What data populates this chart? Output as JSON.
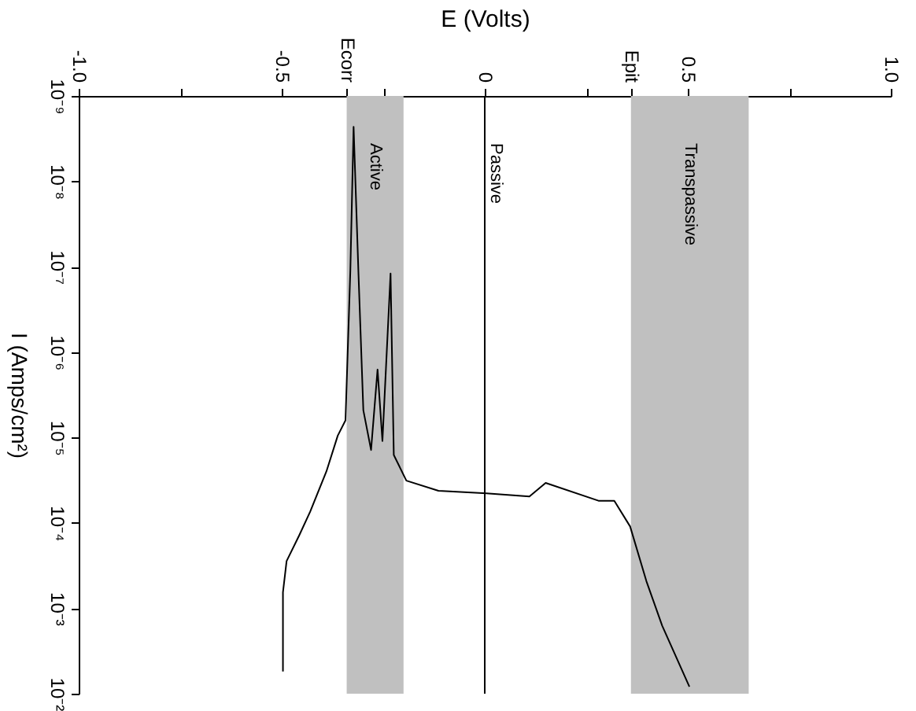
{
  "chart_data": {
    "type": "line",
    "xlabel": "E (Volts)",
    "ylabel": "I (Amps/cm²)",
    "x": [
      -0.497,
      -0.497,
      -0.488,
      -0.457,
      -0.43,
      -0.39,
      -0.362,
      -0.343,
      -0.331,
      -0.323,
      -0.311,
      -0.299,
      -0.28,
      -0.264,
      -0.252,
      -0.232,
      -0.224,
      -0.193,
      -0.114,
      0.004,
      0.11,
      0.15,
      0.28,
      0.319,
      0.358,
      0.398,
      0.437,
      0.504
    ],
    "series": [
      {
        "color": "#000000",
        "values": [
          0.0055,
          0.00065,
          0.00028,
          0.00014,
          7.4e-05,
          2.5e-05,
          9.5e-06,
          6.3e-06,
          1.1e-07,
          2.3e-09,
          1.2e-07,
          4.8e-06,
          1.4e-05,
          1.6e-06,
          1.1e-05,
          1.2e-07,
          1.6e-05,
          3.2e-05,
          4.2e-05,
          4.5e-05,
          4.9e-05,
          3.4e-05,
          5.5e-05,
          5.5e-05,
          0.00011,
          0.00048,
          0.0016,
          0.0083
        ]
      }
    ],
    "xlim": [
      -1.0,
      1.0
    ],
    "xticks": [
      {
        "value": -1.0,
        "label": "-1.0"
      },
      {
        "value": -0.75,
        "label": null
      },
      {
        "value": -0.5,
        "label": "-0.5"
      },
      {
        "value": -0.34,
        "label": "Ecorr"
      },
      {
        "value": -0.25,
        "label": null
      },
      0,
      {
        "value": 0.25,
        "label": null
      },
      {
        "value": 0.36,
        "label": "Epit"
      },
      {
        "value": 0.5,
        "label": "0.5"
      },
      {
        "value": 0.75,
        "label": null
      },
      {
        "value": 1.0,
        "label": "1.0"
      }
    ],
    "log": "y",
    "ylim": [
      0.01,
      1e-09
    ],
    "yticks": [
      {
        "value": 1e-09,
        "label": "10⁻⁹"
      },
      {
        "value": 1e-08,
        "label": "10⁻⁸"
      },
      {
        "value": 1e-07,
        "label": "10⁻⁷"
      },
      {
        "value": 1e-06,
        "label": "10⁻⁶"
      },
      {
        "value": 1e-05,
        "label": "10⁻⁵"
      },
      {
        "value": 0.0001,
        "label": "10⁻⁴"
      },
      {
        "value": 0.001,
        "label": "10⁻³"
      },
      {
        "value": 0.01,
        "label": "10⁻²"
      }
    ],
    "ref_lines": [
      {
        "axis": "x",
        "value": 0,
        "label": "Passive",
        "color": "#000000"
      }
    ],
    "bands": [
      {
        "axis": "x",
        "from": -0.34,
        "to": -0.2,
        "label": "Active",
        "color": "#c0c0c0"
      },
      {
        "axis": "x",
        "from": 0.36,
        "to": 0.65,
        "label": "Transpassive",
        "color": "#c0c0c0"
      }
    ],
    "grid": false,
    "marker": "none",
    "line_style": "solid"
  }
}
